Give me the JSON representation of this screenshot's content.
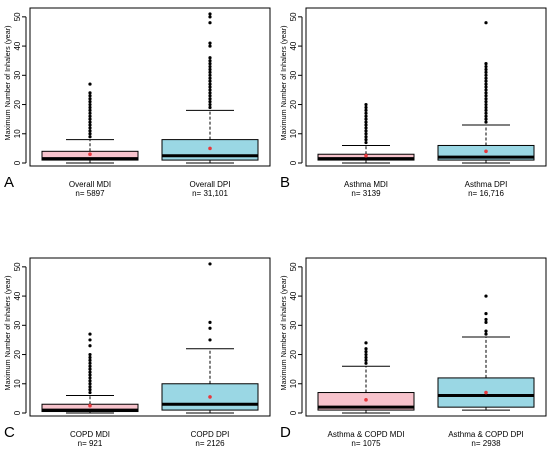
{
  "colors": {
    "mdi": "#f7c3cc",
    "dpi": "#9ad7e4",
    "mean": "#e8383d",
    "outlier": "#000000",
    "median": "#000000"
  },
  "chart_data": [
    {
      "type": "box",
      "panel_letter": "A",
      "ylabel": "Maximum Number of Inhalers (year)",
      "ylim": [
        0,
        52
      ],
      "yticks": [
        0,
        10,
        20,
        30,
        40,
        50
      ],
      "boxes": [
        {
          "label": "Overall MDI",
          "n_label": "n= 5897",
          "color": "mdi",
          "q1": 1,
          "median": 1.5,
          "q3": 4,
          "whisker_low": 0,
          "whisker_high": 8,
          "mean": 3,
          "outliers": [
            9,
            10,
            11,
            12,
            13,
            14,
            15,
            16,
            17,
            18,
            19,
            20,
            21,
            22,
            23,
            24,
            27
          ]
        },
        {
          "label": "Overall DPI",
          "n_label": "n= 31,101",
          "color": "dpi",
          "q1": 1,
          "median": 2.5,
          "q3": 8,
          "whisker_low": 0,
          "whisker_high": 18,
          "mean": 5,
          "outliers": [
            19,
            20,
            21,
            22,
            23,
            24,
            25,
            26,
            27,
            28,
            29,
            30,
            31,
            32,
            33,
            34,
            35,
            36,
            40,
            41,
            48,
            50,
            51
          ]
        }
      ]
    },
    {
      "type": "box",
      "panel_letter": "B",
      "ylabel": "Maximum Number of Inhalers (year)",
      "ylim": [
        0,
        52
      ],
      "yticks": [
        0,
        10,
        20,
        30,
        40,
        50
      ],
      "boxes": [
        {
          "label": "Asthma MDI",
          "n_label": "n= 3139",
          "color": "mdi",
          "q1": 1,
          "median": 1.5,
          "q3": 3,
          "whisker_low": 0,
          "whisker_high": 6,
          "mean": 2.5,
          "outliers": [
            7,
            8,
            9,
            10,
            11,
            12,
            13,
            14,
            15,
            16,
            17,
            18,
            19,
            20
          ]
        },
        {
          "label": "Asthma DPI",
          "n_label": "n= 16,716",
          "color": "dpi",
          "q1": 1,
          "median": 2,
          "q3": 6,
          "whisker_low": 0,
          "whisker_high": 13,
          "mean": 4,
          "outliers": [
            14,
            15,
            16,
            17,
            18,
            19,
            20,
            21,
            22,
            23,
            24,
            25,
            26,
            27,
            28,
            29,
            30,
            31,
            32,
            33,
            34,
            48
          ]
        }
      ]
    },
    {
      "type": "box",
      "panel_letter": "C",
      "ylabel": "Maximum Number of Inhalers (year)",
      "ylim": [
        0,
        52
      ],
      "yticks": [
        0,
        10,
        20,
        30,
        40,
        50
      ],
      "boxes": [
        {
          "label": "COPD MDI",
          "n_label": "n= 921",
          "color": "mdi",
          "q1": 0.5,
          "median": 1,
          "q3": 3,
          "whisker_low": 0,
          "whisker_high": 6,
          "mean": 2.5,
          "outliers": [
            7,
            8,
            9,
            10,
            11,
            12,
            13,
            14,
            15,
            16,
            17,
            18,
            19,
            20,
            23,
            25,
            27
          ]
        },
        {
          "label": "COPD DPI",
          "n_label": "n= 2126",
          "color": "dpi",
          "q1": 1,
          "median": 3,
          "q3": 10,
          "whisker_low": 0,
          "whisker_high": 22,
          "mean": 5.5,
          "outliers": [
            25,
            29,
            31,
            51
          ]
        }
      ]
    },
    {
      "type": "box",
      "panel_letter": "D",
      "ylabel": "Maximum Number of Inhalers (year)",
      "ylim": [
        0,
        52
      ],
      "yticks": [
        0,
        10,
        20,
        30,
        40,
        50
      ],
      "boxes": [
        {
          "label": "Asthma & COPD MDI",
          "n_label": "n= 1075",
          "color": "mdi",
          "q1": 1,
          "median": 2,
          "q3": 7,
          "whisker_low": 0,
          "whisker_high": 16,
          "mean": 4.5,
          "outliers": [
            17,
            18,
            19,
            20,
            21,
            22,
            24
          ]
        },
        {
          "label": "Asthma & COPD DPI",
          "n_label": "n= 2938",
          "color": "dpi",
          "q1": 2,
          "median": 6,
          "q3": 12,
          "whisker_low": 1,
          "whisker_high": 26,
          "mean": 7,
          "outliers": [
            27,
            28,
            31,
            32,
            34,
            40
          ]
        }
      ]
    }
  ]
}
